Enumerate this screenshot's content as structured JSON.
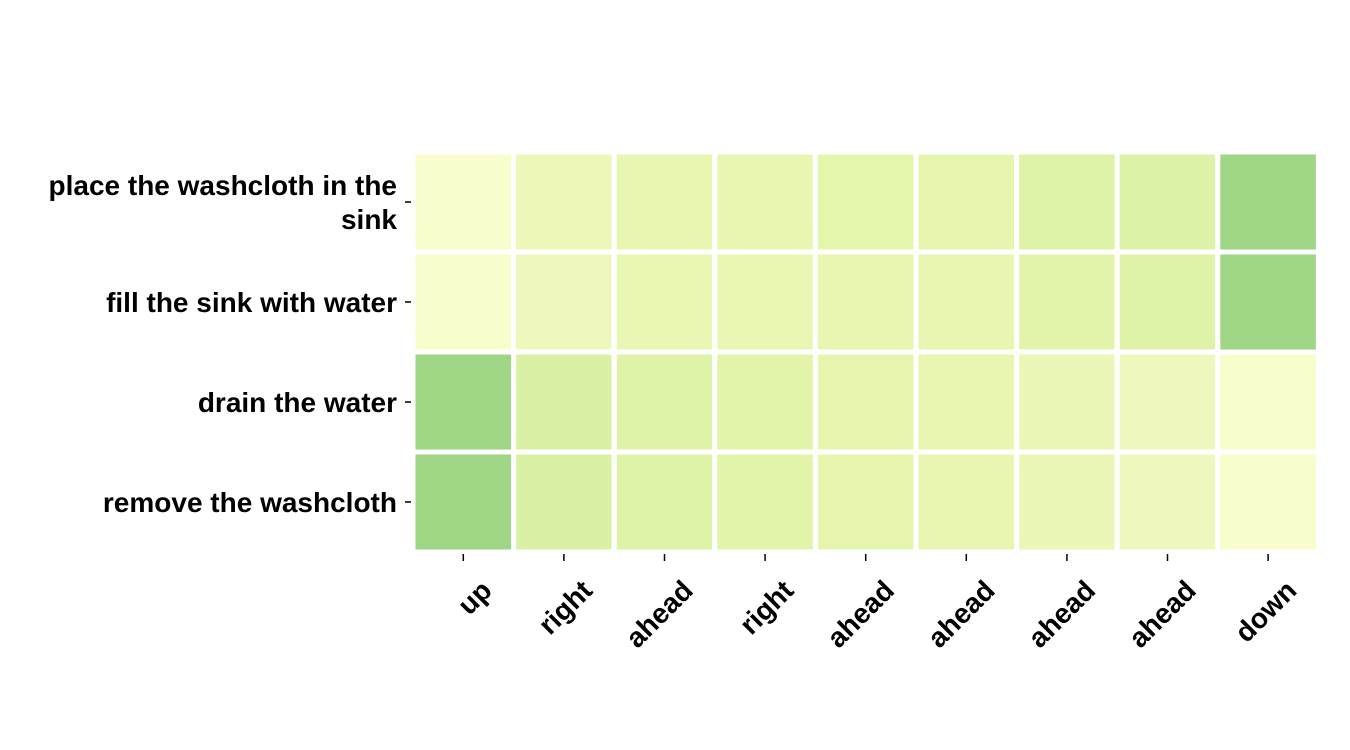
{
  "chart_data": {
    "type": "heatmap",
    "rows": [
      "place the washcloth in the sink",
      "fill the sink with water",
      "drain the water",
      "remove the washcloth"
    ],
    "columns": [
      "up",
      "right",
      "ahead",
      "right",
      "ahead",
      "ahead",
      "ahead",
      "ahead",
      "down"
    ],
    "values": [
      [
        0.02,
        0.12,
        0.16,
        0.16,
        0.18,
        0.17,
        0.22,
        0.24,
        0.55
      ],
      [
        0.02,
        0.1,
        0.14,
        0.14,
        0.15,
        0.16,
        0.2,
        0.22,
        0.55
      ],
      [
        0.55,
        0.26,
        0.22,
        0.2,
        0.17,
        0.15,
        0.13,
        0.1,
        0.02
      ],
      [
        0.55,
        0.26,
        0.22,
        0.2,
        0.17,
        0.15,
        0.13,
        0.1,
        0.02
      ]
    ],
    "colormap": [
      "#f9fccb",
      "#e2f4a9",
      "#cbeb9e",
      "#9fd686"
    ],
    "grid": false,
    "legend": "none"
  }
}
